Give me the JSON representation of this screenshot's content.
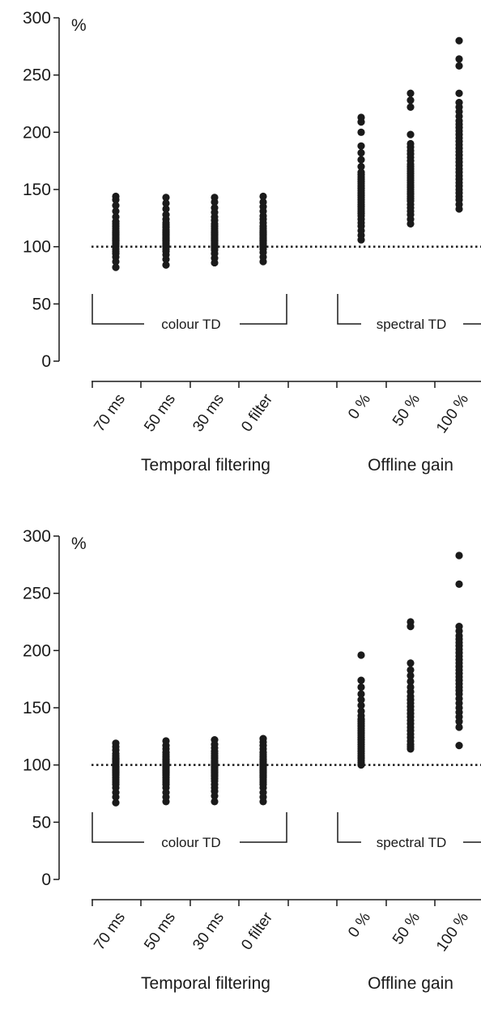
{
  "chart_data": [
    {
      "type": "scatter",
      "ylim": [
        0,
        300
      ],
      "yticks": [
        "0",
        "50",
        "100",
        "150",
        "200",
        "250",
        "300"
      ],
      "unit_label": "%",
      "reference_value": 100,
      "categories": [
        "70 ms",
        "50 ms",
        "30 ms",
        "0 filter",
        "0 %",
        "50 %",
        "100 %"
      ],
      "groups": [
        {
          "title": "Temporal filtering",
          "bracket_label": "colour TD"
        },
        {
          "title": "Offline gain",
          "bracket_label": "spectral TD"
        }
      ],
      "series": [
        {
          "category": "70 ms",
          "values": [
            82,
            87,
            91,
            94,
            96,
            98,
            100,
            101,
            102,
            103,
            104,
            105,
            106,
            107,
            108,
            109,
            110,
            111,
            112,
            113,
            114,
            116,
            118,
            120,
            122,
            126,
            131,
            136,
            141,
            144
          ]
        },
        {
          "category": "50 ms",
          "values": [
            84,
            89,
            93,
            96,
            98,
            100,
            101,
            102,
            103,
            104,
            105,
            106,
            107,
            108,
            109,
            110,
            111,
            112,
            113,
            114,
            115,
            117,
            119,
            121,
            124,
            128,
            133,
            138,
            143
          ]
        },
        {
          "category": "30 ms",
          "values": [
            86,
            90,
            94,
            97,
            99,
            100,
            101,
            102,
            103,
            104,
            105,
            106,
            107,
            108,
            109,
            110,
            111,
            112,
            113,
            114,
            116,
            118,
            120,
            123,
            126,
            130,
            134,
            139,
            143
          ]
        },
        {
          "category": "0 filter",
          "values": [
            87,
            91,
            95,
            98,
            100,
            101,
            102,
            103,
            104,
            105,
            106,
            107,
            108,
            109,
            110,
            111,
            112,
            113,
            114,
            116,
            118,
            121,
            124,
            127,
            131,
            135,
            139,
            144
          ]
        },
        {
          "category": "0 %",
          "values": [
            106,
            110,
            114,
            118,
            121,
            124,
            127,
            129,
            131,
            133,
            135,
            137,
            139,
            141,
            143,
            145,
            147,
            149,
            151,
            153,
            155,
            157,
            159,
            161,
            163,
            165,
            170,
            176,
            182,
            188,
            200,
            209,
            213
          ]
        },
        {
          "category": "50 %",
          "values": [
            120,
            124,
            128,
            131,
            134,
            137,
            140,
            142,
            144,
            146,
            148,
            150,
            152,
            154,
            156,
            158,
            160,
            162,
            164,
            166,
            168,
            170,
            172,
            175,
            178,
            181,
            184,
            187,
            190,
            198,
            222,
            228,
            234
          ]
        },
        {
          "category": "100 %",
          "values": [
            133,
            137,
            141,
            144,
            147,
            150,
            153,
            156,
            159,
            162,
            165,
            168,
            171,
            174,
            177,
            180,
            183,
            186,
            189,
            192,
            195,
            198,
            201,
            204,
            207,
            210,
            214,
            218,
            222,
            226,
            234,
            258,
            264,
            280
          ]
        }
      ]
    },
    {
      "type": "scatter",
      "ylim": [
        0,
        300
      ],
      "yticks": [
        "0",
        "50",
        "100",
        "150",
        "200",
        "250",
        "300"
      ],
      "unit_label": "%",
      "reference_value": 100,
      "categories": [
        "70 ms",
        "50 ms",
        "30 ms",
        "0 filter",
        "0 %",
        "50 %",
        "100 %"
      ],
      "groups": [
        {
          "title": "Temporal filtering",
          "bracket_label": "colour TD"
        },
        {
          "title": "Offline gain",
          "bracket_label": "spectral TD"
        }
      ],
      "series": [
        {
          "category": "70 ms",
          "values": [
            67,
            72,
            76,
            80,
            83,
            85,
            87,
            89,
            91,
            92,
            93,
            94,
            95,
            96,
            97,
            98,
            99,
            100,
            101,
            102,
            103,
            104,
            105,
            106,
            108,
            110,
            113,
            116,
            119
          ]
        },
        {
          "category": "50 ms",
          "values": [
            68,
            72,
            76,
            80,
            83,
            85,
            87,
            89,
            91,
            92,
            93,
            94,
            95,
            96,
            97,
            98,
            99,
            100,
            101,
            102,
            103,
            104,
            105,
            107,
            109,
            111,
            114,
            117,
            121
          ]
        },
        {
          "category": "30 ms",
          "values": [
            68,
            73,
            77,
            80,
            83,
            86,
            88,
            90,
            91,
            92,
            93,
            94,
            95,
            96,
            97,
            98,
            99,
            100,
            101,
            102,
            103,
            104,
            106,
            108,
            110,
            112,
            115,
            118,
            122
          ]
        },
        {
          "category": "0 filter",
          "values": [
            68,
            72,
            76,
            80,
            83,
            85,
            87,
            89,
            90,
            91,
            92,
            93,
            94,
            95,
            96,
            97,
            98,
            99,
            100,
            101,
            102,
            103,
            104,
            105,
            107,
            109,
            111,
            114,
            117,
            120,
            123
          ]
        },
        {
          "category": "0 %",
          "values": [
            100,
            102,
            104,
            106,
            108,
            110,
            112,
            114,
            116,
            118,
            120,
            122,
            124,
            126,
            128,
            130,
            132,
            134,
            136,
            138,
            140,
            143,
            147,
            152,
            157,
            162,
            168,
            174,
            196
          ]
        },
        {
          "category": "50 %",
          "values": [
            114,
            116,
            118,
            121,
            124,
            127,
            130,
            133,
            136,
            139,
            142,
            145,
            148,
            151,
            154,
            157,
            160,
            164,
            168,
            173,
            178,
            183,
            189,
            221,
            225
          ]
        },
        {
          "category": "100 %",
          "values": [
            117,
            133,
            138,
            142,
            146,
            150,
            154,
            158,
            162,
            165,
            168,
            171,
            174,
            177,
            180,
            183,
            186,
            189,
            192,
            195,
            198,
            201,
            204,
            207,
            210,
            213,
            217,
            221,
            258,
            283
          ]
        }
      ]
    }
  ]
}
